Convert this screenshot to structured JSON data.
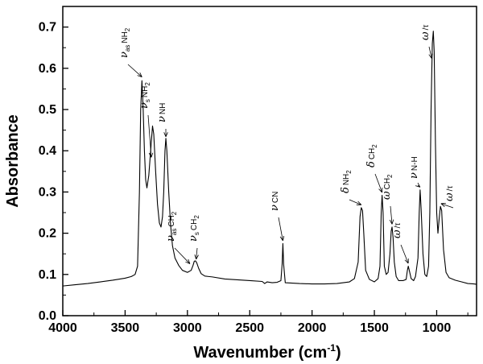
{
  "chart_data": {
    "type": "line",
    "xlabel": "Wavenumber (cm",
    "xlabel_sup": "-1",
    "xlabel_tail": ")",
    "ylabel": "Absorbance",
    "xlim": [
      4000,
      680
    ],
    "ylim": [
      0.0,
      0.75
    ],
    "x_ticks": [
      "4000",
      "3500",
      "3000",
      "2500",
      "2000",
      "1500",
      "1000"
    ],
    "y_ticks": [
      "0.0",
      "0.1",
      "0.2",
      "0.3",
      "0.4",
      "0.5",
      "0.6",
      "0.7"
    ],
    "grid": false,
    "series": [
      {
        "points": [
          [
            4000,
            0.072
          ],
          [
            3900,
            0.075
          ],
          [
            3800,
            0.078
          ],
          [
            3700,
            0.082
          ],
          [
            3600,
            0.086
          ],
          [
            3500,
            0.091
          ],
          [
            3450,
            0.095
          ],
          [
            3420,
            0.1
          ],
          [
            3400,
            0.12
          ],
          [
            3385,
            0.3
          ],
          [
            3375,
            0.5
          ],
          [
            3365,
            0.57
          ],
          [
            3355,
            0.5
          ],
          [
            3345,
            0.4
          ],
          [
            3335,
            0.33
          ],
          [
            3325,
            0.31
          ],
          [
            3310,
            0.34
          ],
          [
            3290,
            0.42
          ],
          [
            3280,
            0.46
          ],
          [
            3270,
            0.44
          ],
          [
            3255,
            0.35
          ],
          [
            3240,
            0.27
          ],
          [
            3225,
            0.225
          ],
          [
            3212,
            0.215
          ],
          [
            3200,
            0.24
          ],
          [
            3190,
            0.3
          ],
          [
            3180,
            0.4
          ],
          [
            3173,
            0.43
          ],
          [
            3165,
            0.4
          ],
          [
            3150,
            0.3
          ],
          [
            3135,
            0.22
          ],
          [
            3120,
            0.17
          ],
          [
            3100,
            0.14
          ],
          [
            3070,
            0.122
          ],
          [
            3040,
            0.11
          ],
          [
            3000,
            0.105
          ],
          [
            2970,
            0.11
          ],
          [
            2955,
            0.122
          ],
          [
            2945,
            0.132
          ],
          [
            2935,
            0.133
          ],
          [
            2925,
            0.128
          ],
          [
            2910,
            0.115
          ],
          [
            2890,
            0.102
          ],
          [
            2860,
            0.096
          ],
          [
            2830,
            0.095
          ],
          [
            2800,
            0.094
          ],
          [
            2700,
            0.089
          ],
          [
            2600,
            0.087
          ],
          [
            2500,
            0.085
          ],
          [
            2400,
            0.083
          ],
          [
            2380,
            0.078
          ],
          [
            2360,
            0.082
          ],
          [
            2320,
            0.08
          ],
          [
            2280,
            0.081
          ],
          [
            2250,
            0.085
          ],
          [
            2240,
            0.125
          ],
          [
            2234,
            0.175
          ],
          [
            2228,
            0.125
          ],
          [
            2215,
            0.08
          ],
          [
            2100,
            0.078
          ],
          [
            2000,
            0.077
          ],
          [
            1900,
            0.077
          ],
          [
            1800,
            0.078
          ],
          [
            1700,
            0.082
          ],
          [
            1660,
            0.09
          ],
          [
            1630,
            0.13
          ],
          [
            1615,
            0.24
          ],
          [
            1605,
            0.262
          ],
          [
            1595,
            0.255
          ],
          [
            1585,
            0.2
          ],
          [
            1570,
            0.11
          ],
          [
            1540,
            0.088
          ],
          [
            1500,
            0.082
          ],
          [
            1470,
            0.09
          ],
          [
            1455,
            0.12
          ],
          [
            1445,
            0.25
          ],
          [
            1438,
            0.292
          ],
          [
            1430,
            0.25
          ],
          [
            1420,
            0.12
          ],
          [
            1405,
            0.1
          ],
          [
            1390,
            0.105
          ],
          [
            1375,
            0.15
          ],
          [
            1365,
            0.205
          ],
          [
            1358,
            0.215
          ],
          [
            1350,
            0.19
          ],
          [
            1340,
            0.13
          ],
          [
            1325,
            0.095
          ],
          [
            1305,
            0.085
          ],
          [
            1270,
            0.085
          ],
          [
            1245,
            0.088
          ],
          [
            1235,
            0.11
          ],
          [
            1228,
            0.12
          ],
          [
            1220,
            0.11
          ],
          [
            1205,
            0.09
          ],
          [
            1185,
            0.085
          ],
          [
            1170,
            0.095
          ],
          [
            1150,
            0.14
          ],
          [
            1140,
            0.25
          ],
          [
            1133,
            0.305
          ],
          [
            1125,
            0.26
          ],
          [
            1110,
            0.15
          ],
          [
            1095,
            0.1
          ],
          [
            1080,
            0.095
          ],
          [
            1065,
            0.12
          ],
          [
            1055,
            0.25
          ],
          [
            1045,
            0.5
          ],
          [
            1035,
            0.66
          ],
          [
            1027,
            0.69
          ],
          [
            1020,
            0.64
          ],
          [
            1010,
            0.42
          ],
          [
            1000,
            0.25
          ],
          [
            990,
            0.2
          ],
          [
            980,
            0.235
          ],
          [
            970,
            0.265
          ],
          [
            960,
            0.255
          ],
          [
            945,
            0.16
          ],
          [
            925,
            0.105
          ],
          [
            900,
            0.092
          ],
          [
            850,
            0.086
          ],
          [
            800,
            0.082
          ],
          [
            750,
            0.078
          ],
          [
            700,
            0.077
          ],
          [
            680,
            0.076
          ]
        ]
      }
    ],
    "annotations": [
      {
        "greek": "ν",
        "sub": "as",
        "text": "NH",
        "sub2": "2",
        "at_x": 3365,
        "at_y": 0.575
      },
      {
        "greek": "ν",
        "sub": "s",
        "text": "NH",
        "sub2": "2",
        "at_x": 3290,
        "at_y": 0.38
      },
      {
        "greek": "ν",
        "sub": "",
        "text": "NH",
        "sub2": "",
        "at_x": 3173,
        "at_y": 0.43
      },
      {
        "greek": "ν",
        "sub": "as",
        "text": "CH",
        "sub2": "2",
        "at_x": 2980,
        "at_y": 0.122
      },
      {
        "greek": "ν",
        "sub": "s",
        "text": "CH",
        "sub2": "2",
        "at_x": 2930,
        "at_y": 0.133
      },
      {
        "greek": "ν",
        "sub": "",
        "text": "CN",
        "sub2": "",
        "at_x": 2234,
        "at_y": 0.178
      },
      {
        "greek": "δ",
        "sub": "",
        "text": "NH",
        "sub2": "2",
        "at_x": 1605,
        "at_y": 0.265
      },
      {
        "greek": "δ",
        "sub": "",
        "text": "CH",
        "sub2": "2",
        "at_x": 1438,
        "at_y": 0.295
      },
      {
        "greek": "ω",
        "sub": "",
        "text": "CH",
        "sub2": "2",
        "at_x": 1358,
        "at_y": 0.218
      },
      {
        "greek": "ω",
        "sub": "",
        "text": "/τ",
        "sub2": "",
        "at_x": 1228,
        "at_y": 0.123
      },
      {
        "greek": "ν",
        "sub": "",
        "text": "N-H",
        "sub2": "",
        "at_x": 1133,
        "at_y": 0.308
      },
      {
        "greek": "ω",
        "sub": "",
        "text": "/τ",
        "sub2": "",
        "at_x": 1040,
        "at_y": 0.62
      },
      {
        "greek": "ω",
        "sub": "",
        "text": "/τ",
        "sub2": "",
        "at_x": 965,
        "at_y": 0.268
      }
    ]
  }
}
